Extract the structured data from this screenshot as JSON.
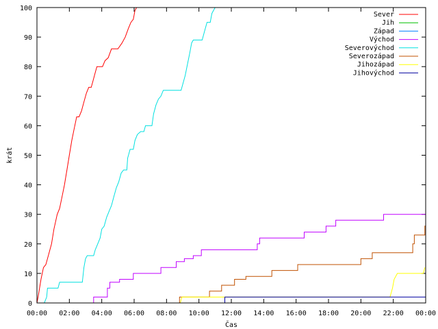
{
  "chart_data": {
    "type": "line",
    "title": "",
    "xlabel": "Čas",
    "ylabel": "krát",
    "xlim": [
      0,
      24
    ],
    "ylim": [
      0,
      100
    ],
    "x_ticks": [
      {
        "value": 0,
        "label": "00:00"
      },
      {
        "value": 2,
        "label": "02:00"
      },
      {
        "value": 4,
        "label": "04:00"
      },
      {
        "value": 6,
        "label": "06:00"
      },
      {
        "value": 8,
        "label": "08:00"
      },
      {
        "value": 10,
        "label": "10:00"
      },
      {
        "value": 12,
        "label": "12:00"
      },
      {
        "value": 14,
        "label": "14:00"
      },
      {
        "value": 16,
        "label": "16:00"
      },
      {
        "value": 18,
        "label": "18:00"
      },
      {
        "value": 20,
        "label": "20:00"
      },
      {
        "value": 22,
        "label": "22:00"
      },
      {
        "value": 24,
        "label": "00:00"
      }
    ],
    "y_ticks": [
      {
        "value": 0,
        "label": "0"
      },
      {
        "value": 10,
        "label": "10"
      },
      {
        "value": 20,
        "label": "20"
      },
      {
        "value": 30,
        "label": "30"
      },
      {
        "value": 40,
        "label": "40"
      },
      {
        "value": 50,
        "label": "50"
      },
      {
        "value": 60,
        "label": "60"
      },
      {
        "value": 70,
        "label": "70"
      },
      {
        "value": 80,
        "label": "80"
      },
      {
        "value": 90,
        "label": "90"
      },
      {
        "value": 100,
        "label": "100"
      }
    ],
    "grid": false,
    "legend_position": "top-right",
    "series": [
      {
        "name": "Sever",
        "color": "#ff0000",
        "step": false,
        "points": [
          [
            0.0,
            0
          ],
          [
            0.1,
            3
          ],
          [
            0.25,
            8
          ],
          [
            0.4,
            12
          ],
          [
            0.55,
            13
          ],
          [
            0.7,
            16
          ],
          [
            0.9,
            20
          ],
          [
            1.05,
            25
          ],
          [
            1.25,
            30
          ],
          [
            1.4,
            32
          ],
          [
            1.55,
            36
          ],
          [
            1.7,
            40
          ],
          [
            1.85,
            45
          ],
          [
            2.0,
            50
          ],
          [
            2.15,
            55
          ],
          [
            2.3,
            59
          ],
          [
            2.45,
            63
          ],
          [
            2.6,
            63
          ],
          [
            2.75,
            65
          ],
          [
            2.9,
            68
          ],
          [
            3.05,
            71
          ],
          [
            3.2,
            73
          ],
          [
            3.35,
            73
          ],
          [
            3.45,
            75
          ],
          [
            3.6,
            78
          ],
          [
            3.7,
            80
          ],
          [
            4.05,
            80
          ],
          [
            4.2,
            82
          ],
          [
            4.4,
            83
          ],
          [
            4.6,
            86
          ],
          [
            5.0,
            86
          ],
          [
            5.25,
            88
          ],
          [
            5.45,
            90
          ],
          [
            5.65,
            93
          ],
          [
            5.8,
            95
          ],
          [
            5.95,
            96
          ],
          [
            6.05,
            99
          ],
          [
            6.15,
            100
          ],
          [
            6.35,
            100
          ]
        ]
      },
      {
        "name": "Jih",
        "color": "#00c000",
        "step": false,
        "points": []
      },
      {
        "name": "Západ",
        "color": "#0080ff",
        "step": false,
        "points": []
      },
      {
        "name": "Východ",
        "color": "#c000ff",
        "step": true,
        "points": [
          [
            3.45,
            0
          ],
          [
            3.5,
            2
          ],
          [
            4.25,
            2
          ],
          [
            4.35,
            5
          ],
          [
            4.5,
            7
          ],
          [
            5.0,
            7
          ],
          [
            5.1,
            8
          ],
          [
            5.85,
            8
          ],
          [
            5.95,
            10
          ],
          [
            7.55,
            10
          ],
          [
            7.65,
            12
          ],
          [
            8.5,
            12
          ],
          [
            8.6,
            14
          ],
          [
            9.0,
            14
          ],
          [
            9.1,
            15
          ],
          [
            9.55,
            15
          ],
          [
            9.65,
            16
          ],
          [
            10.05,
            16
          ],
          [
            10.15,
            18
          ],
          [
            13.55,
            18
          ],
          [
            13.6,
            20
          ],
          [
            13.65,
            20
          ],
          [
            13.75,
            22
          ],
          [
            16.4,
            22
          ],
          [
            16.5,
            24
          ],
          [
            17.75,
            24
          ],
          [
            17.85,
            26
          ],
          [
            18.35,
            26
          ],
          [
            18.45,
            28
          ],
          [
            21.3,
            28
          ],
          [
            21.4,
            30
          ],
          [
            24.0,
            30
          ]
        ]
      },
      {
        "name": "Severovýchod",
        "color": "#00e0e0",
        "step": false,
        "points": [
          [
            0.45,
            0
          ],
          [
            0.6,
            2
          ],
          [
            0.65,
            5
          ],
          [
            1.3,
            5
          ],
          [
            1.4,
            7
          ],
          [
            2.8,
            7
          ],
          [
            2.9,
            12
          ],
          [
            3.0,
            15
          ],
          [
            3.1,
            16
          ],
          [
            3.5,
            16
          ],
          [
            3.6,
            18
          ],
          [
            3.75,
            20
          ],
          [
            3.9,
            22
          ],
          [
            4.0,
            25
          ],
          [
            4.15,
            26
          ],
          [
            4.3,
            29
          ],
          [
            4.45,
            31
          ],
          [
            4.6,
            33
          ],
          [
            4.75,
            36
          ],
          [
            4.9,
            39
          ],
          [
            5.05,
            41
          ],
          [
            5.2,
            44
          ],
          [
            5.35,
            45
          ],
          [
            5.55,
            45
          ],
          [
            5.6,
            49
          ],
          [
            5.75,
            52
          ],
          [
            5.95,
            52
          ],
          [
            6.05,
            55
          ],
          [
            6.2,
            57
          ],
          [
            6.4,
            58
          ],
          [
            6.6,
            58
          ],
          [
            6.7,
            60
          ],
          [
            7.1,
            60
          ],
          [
            7.2,
            64
          ],
          [
            7.35,
            67
          ],
          [
            7.5,
            69
          ],
          [
            7.65,
            70
          ],
          [
            7.8,
            72
          ],
          [
            8.9,
            72
          ],
          [
            9.0,
            74
          ],
          [
            9.15,
            77
          ],
          [
            9.3,
            81
          ],
          [
            9.45,
            85
          ],
          [
            9.55,
            88
          ],
          [
            9.65,
            89
          ],
          [
            10.2,
            89
          ],
          [
            10.35,
            92
          ],
          [
            10.5,
            95
          ],
          [
            10.7,
            95
          ],
          [
            10.8,
            98
          ],
          [
            11.0,
            100
          ]
        ]
      },
      {
        "name": "Severozápad",
        "color": "#c05000",
        "step": true,
        "points": [
          [
            8.75,
            0
          ],
          [
            8.8,
            2
          ],
          [
            10.55,
            2
          ],
          [
            10.65,
            4
          ],
          [
            11.3,
            4
          ],
          [
            11.4,
            6
          ],
          [
            12.1,
            6
          ],
          [
            12.2,
            8
          ],
          [
            12.8,
            8
          ],
          [
            12.9,
            9
          ],
          [
            14.4,
            9
          ],
          [
            14.5,
            11
          ],
          [
            16.0,
            11
          ],
          [
            16.1,
            13
          ],
          [
            19.9,
            13
          ],
          [
            20.0,
            15
          ],
          [
            20.6,
            15
          ],
          [
            20.7,
            17
          ],
          [
            23.1,
            17
          ],
          [
            23.2,
            20
          ],
          [
            23.3,
            23
          ],
          [
            23.85,
            23
          ],
          [
            23.95,
            26
          ],
          [
            24.0,
            26
          ]
        ]
      },
      {
        "name": "Jihozápad",
        "color": "#ffff00",
        "step": false,
        "points": [
          [
            8.85,
            0
          ],
          [
            8.95,
            2
          ],
          [
            12.0,
            2
          ],
          [
            21.8,
            2
          ],
          [
            21.95,
            5
          ],
          [
            22.05,
            8
          ],
          [
            22.25,
            10
          ],
          [
            23.85,
            10
          ],
          [
            23.95,
            12
          ]
        ]
      },
      {
        "name": "Jihovýchod",
        "color": "#0000a0",
        "step": true,
        "points": [
          [
            11.55,
            0
          ],
          [
            11.6,
            2
          ],
          [
            24.0,
            2
          ]
        ]
      }
    ]
  }
}
